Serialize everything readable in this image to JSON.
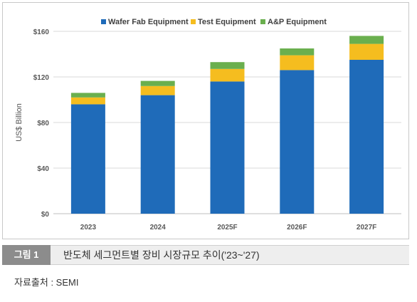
{
  "chart_data": {
    "type": "bar",
    "stacked": true,
    "categories": [
      "2023",
      "2024",
      "2025F",
      "2026F",
      "2027F"
    ],
    "series": [
      {
        "name": "Wafer Fab Equipment",
        "color": "#1f6bb9",
        "values": [
          96,
          104,
          116,
          126,
          135
        ]
      },
      {
        "name": "Test Equipment",
        "color": "#f5bd1f",
        "values": [
          6,
          8,
          11,
          13,
          14
        ]
      },
      {
        "name": "A&P Equipment",
        "color": "#6aaf4e",
        "values": [
          4,
          4.5,
          6,
          6,
          7
        ]
      }
    ],
    "ylabel": "US$ Billion",
    "ylim": [
      0,
      160
    ],
    "yticks": [
      0,
      40,
      80,
      120,
      160
    ],
    "ytick_labels": [
      "$0",
      "$40",
      "$80",
      "$120",
      "$160"
    ],
    "grid": true,
    "legend": "top-center"
  },
  "caption": {
    "tag": "그림 1",
    "text": "반도체 세그먼트별 장비 시장규모 추이('23~'27)"
  },
  "source": "자료출처 : SEMI"
}
